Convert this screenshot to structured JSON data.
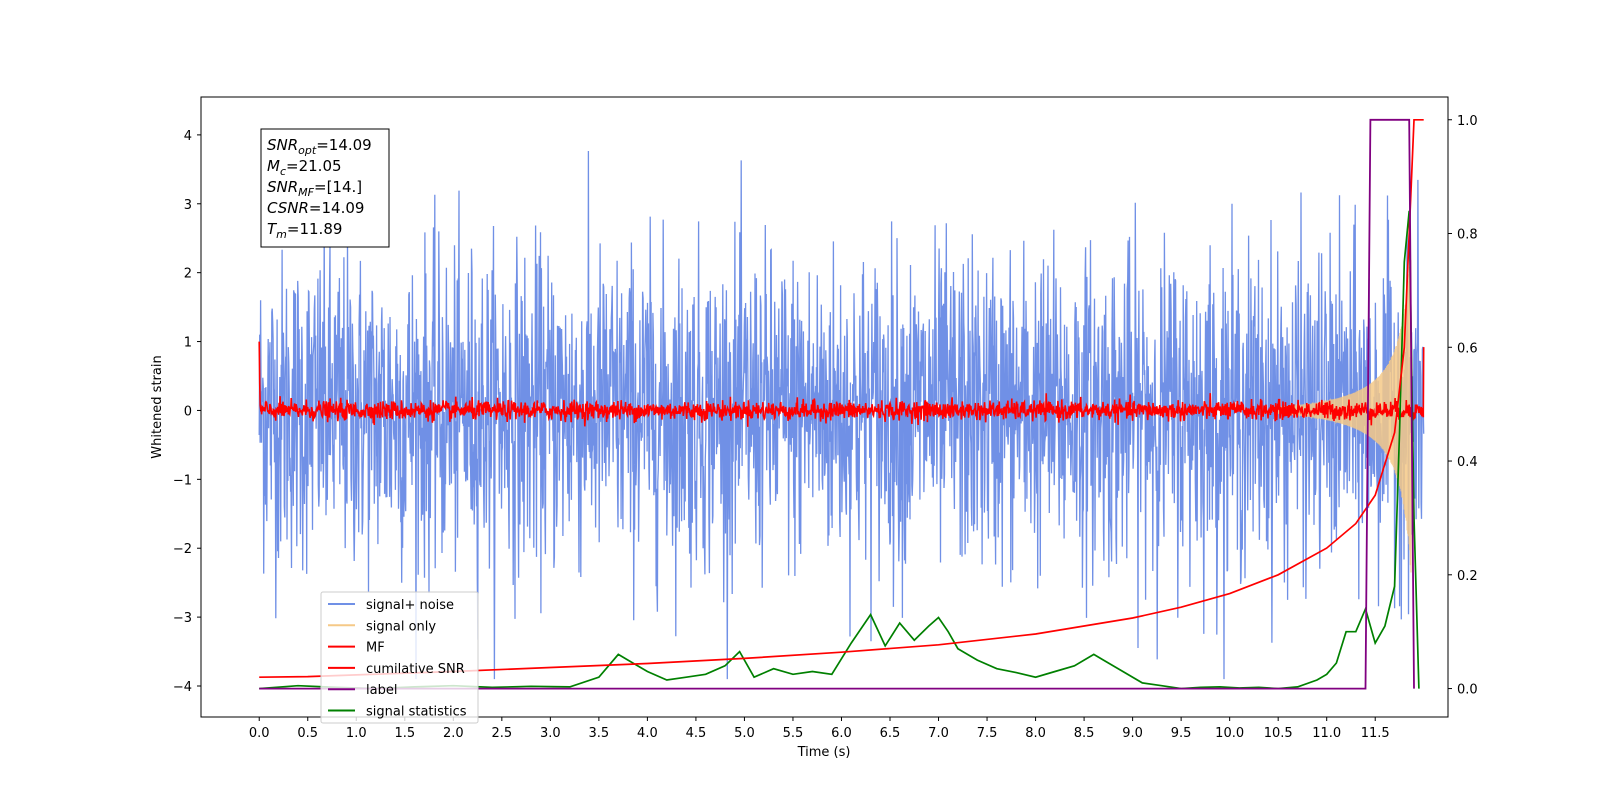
{
  "chart_data": {
    "type": "line",
    "xlabel": "Time (s)",
    "ylabel": "Whitened strain",
    "xlim": [
      -0.6,
      12.25
    ],
    "ylim": [
      -4.45,
      4.55
    ],
    "y2lim": [
      -0.05,
      1.04
    ],
    "xticks": [
      "0.0",
      "0.5",
      "1.0",
      "1.5",
      "2.0",
      "2.5",
      "3.0",
      "3.5",
      "4.0",
      "4.5",
      "5.0",
      "5.5",
      "6.0",
      "6.5",
      "7.0",
      "7.5",
      "8.0",
      "8.5",
      "9.0",
      "9.5",
      "10.0",
      "10.5",
      "11.0",
      "11.5"
    ],
    "yticks": [
      "4",
      "3",
      "2",
      "1",
      "0",
      "−1",
      "−2",
      "−3",
      "−4"
    ],
    "y2ticks": [
      "1.0",
      "0.8",
      "0.6",
      "0.4",
      "0.2",
      "0.0"
    ],
    "grid": false,
    "annotation": {
      "lines": [
        {
          "var": "SNR",
          "sub": "opt",
          "rest": "=14.09"
        },
        {
          "var": "M",
          "sub": "c",
          "rest": "=21.05"
        },
        {
          "var": "SNR",
          "sub": "MF",
          "rest": "=[14.]"
        },
        {
          "var": "CSNR",
          "sub": "",
          "rest": "=14.09"
        },
        {
          "var": "T",
          "sub": "m",
          "rest": "=11.89"
        }
      ]
    },
    "legend": {
      "placement": "lower-left",
      "entries": [
        {
          "label": "signal+ noise",
          "color": "#7090e6"
        },
        {
          "label": "signal only",
          "color": "#f5c987"
        },
        {
          "label": "MF",
          "color": "#ff0000"
        },
        {
          "label": "cumilative SNR",
          "color": "#ff0000"
        },
        {
          "label": "label",
          "color": "#800080"
        },
        {
          "label": "signal statistics",
          "color": "#008000"
        }
      ]
    },
    "series": [
      {
        "name": "signal+ noise",
        "axis": "left",
        "color": "#7090e6",
        "t_range": [
          0.0,
          12.0
        ],
        "amplitude": "noise, about ±4 (whitened units)"
      },
      {
        "name": "signal only",
        "axis": "left",
        "color": "#f5c987",
        "description": "chirp growing from ~0 at 10.5 s to ~±2.5 at 11.85 s"
      },
      {
        "name": "MF",
        "axis": "left",
        "color": "#ff0000",
        "t_range": [
          0.0,
          12.0
        ],
        "amplitude": "about ±0.2 around 0, peaks near 1.0 at t=0 and 0.9 at t=12"
      },
      {
        "name": "cumilative SNR",
        "axis": "right",
        "color": "#ff0000",
        "x": [
          0.0,
          0.5,
          1.0,
          2.0,
          3.0,
          4.0,
          5.0,
          6.0,
          7.0,
          8.0,
          9.0,
          9.5,
          10.0,
          10.5,
          11.0,
          11.3,
          11.5,
          11.7,
          11.8,
          11.85,
          11.9,
          12.0
        ],
        "y": [
          0.02,
          0.021,
          0.024,
          0.03,
          0.037,
          0.044,
          0.053,
          0.064,
          0.077,
          0.096,
          0.124,
          0.143,
          0.167,
          0.2,
          0.247,
          0.29,
          0.34,
          0.45,
          0.6,
          0.8,
          1.0,
          1.0
        ]
      },
      {
        "name": "label",
        "axis": "right",
        "color": "#800080",
        "x": [
          0.0,
          11.4,
          11.45,
          11.85,
          11.9
        ],
        "y": [
          0.0,
          0.0,
          1.0,
          1.0,
          0.0
        ]
      },
      {
        "name": "signal statistics",
        "axis": "right",
        "color": "#008000",
        "x": [
          0.0,
          0.4,
          0.8,
          1.2,
          1.6,
          2.0,
          2.4,
          2.8,
          3.2,
          3.5,
          3.7,
          3.8,
          4.0,
          4.2,
          4.4,
          4.6,
          4.8,
          4.95,
          5.1,
          5.3,
          5.5,
          5.7,
          5.9,
          6.1,
          6.3,
          6.45,
          6.6,
          6.75,
          6.9,
          7.0,
          7.1,
          7.2,
          7.4,
          7.6,
          7.8,
          8.0,
          8.2,
          8.4,
          8.6,
          8.7,
          8.9,
          9.1,
          9.3,
          9.5,
          9.7,
          9.9,
          10.1,
          10.3,
          10.5,
          10.7,
          10.9,
          11.0,
          11.1,
          11.2,
          11.3,
          11.4,
          11.5,
          11.6,
          11.7,
          11.75,
          11.8,
          11.85,
          11.9,
          11.95
        ],
        "y": [
          0.0,
          0.005,
          0.002,
          0.0,
          0.003,
          0.005,
          0.002,
          0.004,
          0.003,
          0.02,
          0.06,
          0.05,
          0.03,
          0.015,
          0.02,
          0.025,
          0.04,
          0.065,
          0.02,
          0.035,
          0.025,
          0.03,
          0.025,
          0.08,
          0.13,
          0.075,
          0.115,
          0.085,
          0.11,
          0.125,
          0.1,
          0.07,
          0.05,
          0.035,
          0.028,
          0.02,
          0.03,
          0.04,
          0.06,
          0.05,
          0.03,
          0.01,
          0.005,
          0.0,
          0.002,
          0.003,
          0.001,
          0.002,
          0.0,
          0.003,
          0.015,
          0.025,
          0.045,
          0.1,
          0.1,
          0.14,
          0.08,
          0.11,
          0.18,
          0.45,
          0.75,
          0.84,
          0.3,
          0.0
        ]
      }
    ]
  }
}
